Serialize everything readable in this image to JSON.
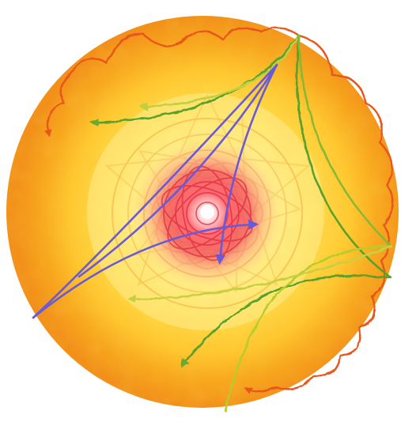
{
  "artwork": {
    "subject": "",
    "colors": {
      "disc_outer": "#f59a1a",
      "disc_mid": "#ffd02a",
      "disc_inner": "#fff5a0",
      "core": "#e83040",
      "core_glow": "#ff7a7a",
      "scallop": "#e8561a",
      "green": "#5aa02a",
      "yellow_green": "#b8cc2a",
      "purple": "#6a5ad8",
      "background": "#ffffff"
    },
    "icons": [
      "arrow-head-icon"
    ]
  }
}
